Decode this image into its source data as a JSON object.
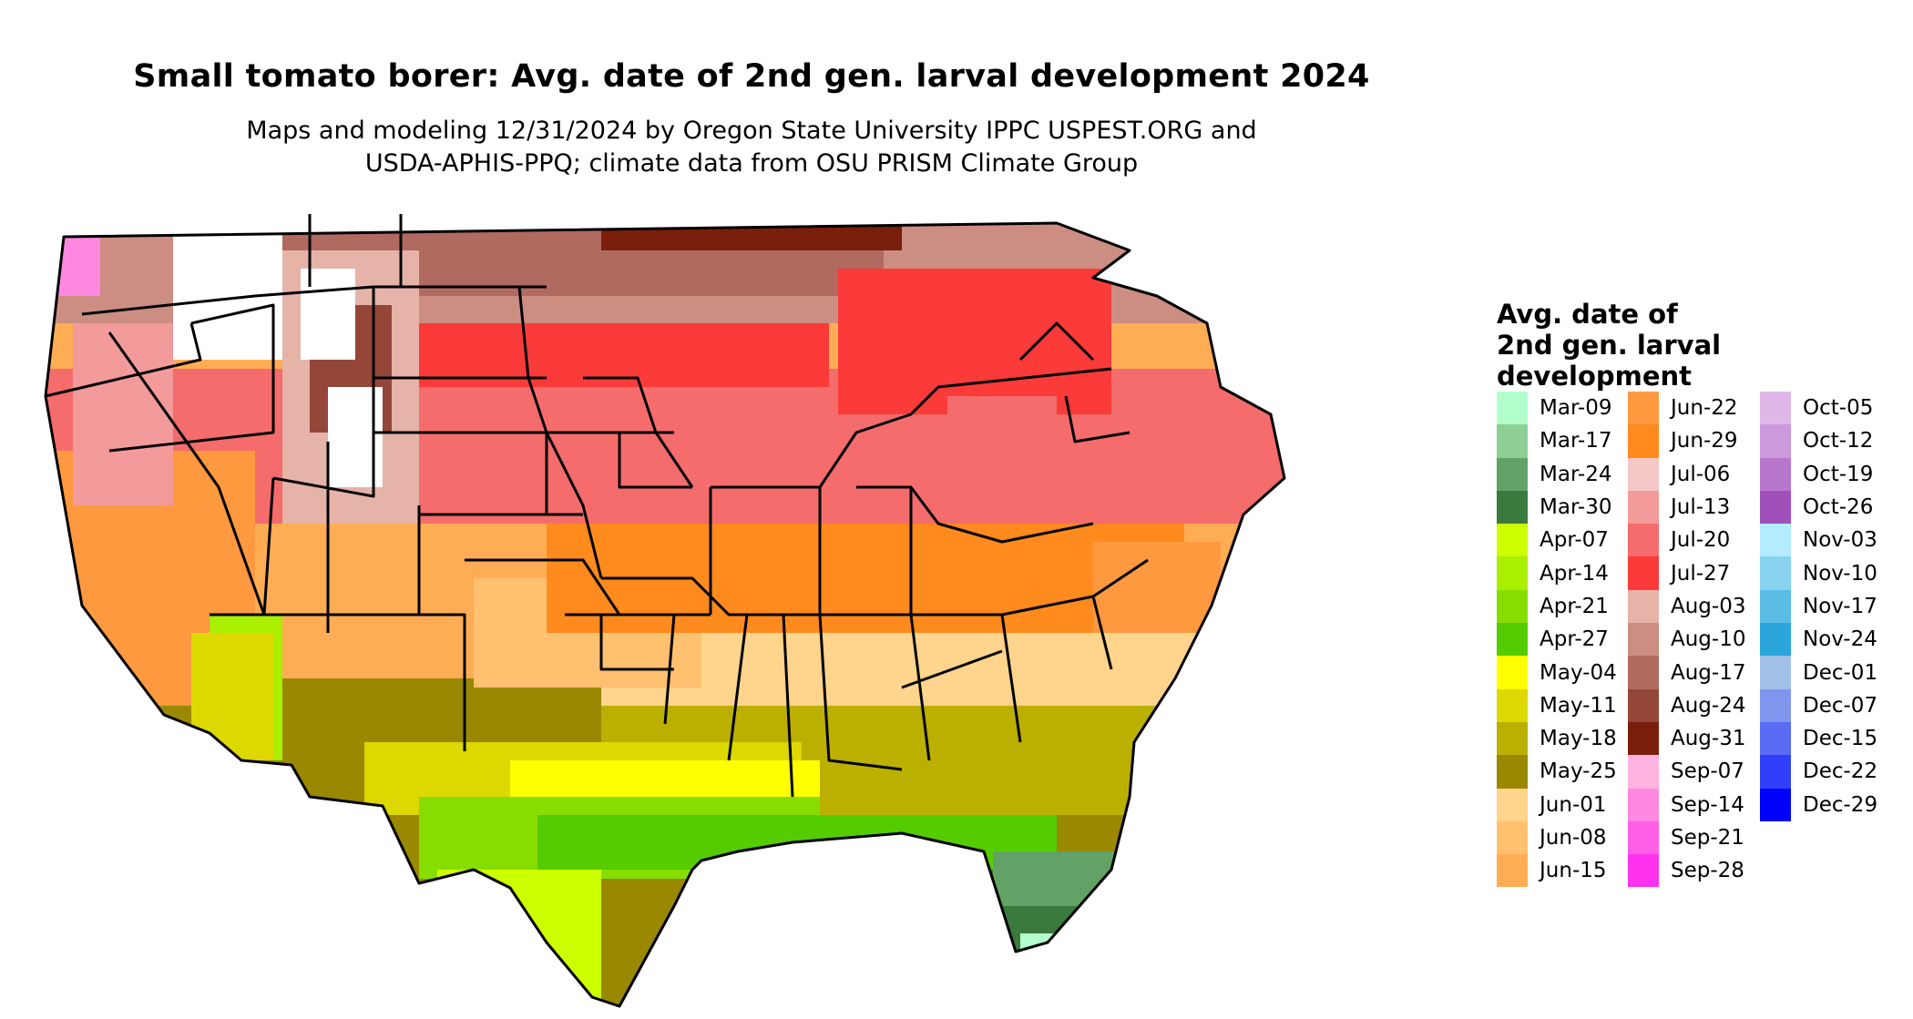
{
  "header": {
    "title": "Small tomato borer: Avg. date of 2nd gen. larval development 2024",
    "subtitle_line1": "Maps and modeling 12/31/2024 by Oregon State University IPPC USPEST.ORG and",
    "subtitle_line2": "USDA-APHIS-PPQ; climate data from OSU PRISM Climate Group"
  },
  "legend": {
    "title_line1": "Avg. date of",
    "title_line2": "2nd gen. larval",
    "title_line3": "development",
    "items": [
      {
        "label": "Mar-09",
        "color": "#b3ffcc"
      },
      {
        "label": "Mar-17",
        "color": "#8dcf94"
      },
      {
        "label": "Mar-24",
        "color": "#62a266"
      },
      {
        "label": "Mar-30",
        "color": "#3a7a3d"
      },
      {
        "label": "Apr-07",
        "color": "#ccff00"
      },
      {
        "label": "Apr-14",
        "color": "#aaee00"
      },
      {
        "label": "Apr-21",
        "color": "#88dd00"
      },
      {
        "label": "Apr-27",
        "color": "#55cc00"
      },
      {
        "label": "May-04",
        "color": "#ffff00"
      },
      {
        "label": "May-11",
        "color": "#ddd800"
      },
      {
        "label": "May-18",
        "color": "#bbb000"
      },
      {
        "label": "May-25",
        "color": "#998800"
      },
      {
        "label": "Jun-01",
        "color": "#ffd48c"
      },
      {
        "label": "Jun-08",
        "color": "#ffc070"
      },
      {
        "label": "Jun-15",
        "color": "#ffad55"
      },
      {
        "label": "Jun-22",
        "color": "#ff9940"
      },
      {
        "label": "Jun-29",
        "color": "#ff8a1e"
      },
      {
        "label": "Jul-06",
        "color": "#f5c8c8"
      },
      {
        "label": "Jul-13",
        "color": "#f39a9a"
      },
      {
        "label": "Jul-20",
        "color": "#f56c6c"
      },
      {
        "label": "Jul-27",
        "color": "#fb3a3a"
      },
      {
        "label": "Aug-03",
        "color": "#e6b3a8"
      },
      {
        "label": "Aug-10",
        "color": "#cc8e82"
      },
      {
        "label": "Aug-17",
        "color": "#b06a5f"
      },
      {
        "label": "Aug-24",
        "color": "#944638"
      },
      {
        "label": "Aug-31",
        "color": "#7a1e0c"
      },
      {
        "label": "Sep-07",
        "color": "#ffb3e0"
      },
      {
        "label": "Sep-14",
        "color": "#ff88e0"
      },
      {
        "label": "Sep-21",
        "color": "#ff5ee6"
      },
      {
        "label": "Sep-28",
        "color": "#ff33ee"
      },
      {
        "label": "Oct-05",
        "color": "#e0b8e8"
      },
      {
        "label": "Oct-12",
        "color": "#cc99dd"
      },
      {
        "label": "Oct-19",
        "color": "#b877cc"
      },
      {
        "label": "Oct-26",
        "color": "#a050bb"
      },
      {
        "label": "Nov-03",
        "color": "#b3ecff"
      },
      {
        "label": "Nov-10",
        "color": "#88d4f0"
      },
      {
        "label": "Nov-17",
        "color": "#5bbde6"
      },
      {
        "label": "Nov-24",
        "color": "#2aa6dd"
      },
      {
        "label": "Dec-01",
        "color": "#a0c0e8"
      },
      {
        "label": "Dec-07",
        "color": "#8096ee"
      },
      {
        "label": "Dec-15",
        "color": "#5a6bf5"
      },
      {
        "label": "Dec-22",
        "color": "#3040fa"
      },
      {
        "label": "Dec-29",
        "color": "#0000ff"
      }
    ]
  }
}
